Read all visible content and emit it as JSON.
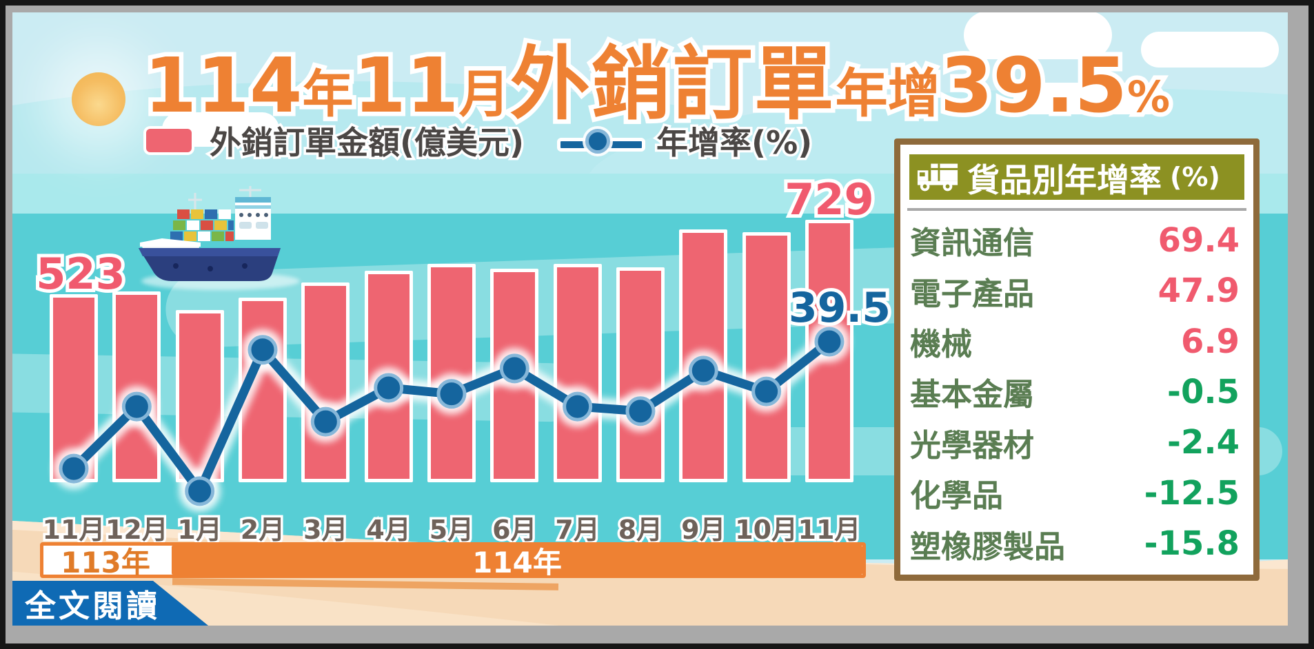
{
  "title": {
    "year_num": "114",
    "year_suffix": "年",
    "month_num": "11",
    "month_suffix": "月",
    "headline": "外銷訂單",
    "growth_prefix": "年增",
    "growth_value": "39.5",
    "percent_sign": "%"
  },
  "legend": {
    "bar_label": "外銷訂單金額(億美元)",
    "line_label": "年增率(%)"
  },
  "chart_data": {
    "type": "bar+line",
    "categories": [
      "11月",
      "12月",
      "1月",
      "2月",
      "3月",
      "4月",
      "5月",
      "6月",
      "7月",
      "8月",
      "9月",
      "10月",
      "11月"
    ],
    "year_bands": [
      {
        "label": "113年",
        "from_index": 0,
        "to_index": 1
      },
      {
        "label": "114年",
        "from_index": 2,
        "to_index": 12
      }
    ],
    "bar_series": {
      "name": "外銷訂單金額(億美元)",
      "unit": "億美元",
      "values": [
        523,
        530,
        479,
        513,
        555,
        588,
        607,
        594,
        607,
        597,
        703,
        695,
        729
      ],
      "note": "only first (523) and last (729) values are printed on the chart; intermediate values estimated from bar heights"
    },
    "line_series": {
      "name": "年增率(%)",
      "unit": "%",
      "values": [
        3.5,
        21.1,
        -2.9,
        37.2,
        16.8,
        26.4,
        24.7,
        31.9,
        21.1,
        19.8,
        31.3,
        25.4,
        39.5
      ],
      "note": "only final value (39.5) is printed on the chart; intermediate values estimated from point positions"
    },
    "annotations": [
      {
        "series": "bar",
        "index": 0,
        "text": "523"
      },
      {
        "series": "bar",
        "index": 12,
        "text": "729"
      },
      {
        "series": "line",
        "index": 12,
        "text": "39.5"
      }
    ],
    "legend_position": "top",
    "grid": false,
    "ylim_bar": [
      0,
      780
    ],
    "ylim_line": [
      -10,
      45
    ]
  },
  "panel": {
    "header": "貨品別年增率",
    "header_unit": "(%)",
    "icon": "truck-icon",
    "rows": [
      {
        "label": "資訊通信",
        "value": "69.4"
      },
      {
        "label": "電子產品",
        "value": "47.9"
      },
      {
        "label": "機械",
        "value": "6.9"
      },
      {
        "label": "基本金屬",
        "value": "-0.5"
      },
      {
        "label": "光學器材",
        "value": "-2.4"
      },
      {
        "label": "化學品",
        "value": "-12.5"
      },
      {
        "label": "塑橡膠製品",
        "value": "-15.8"
      }
    ]
  },
  "footer": {
    "read_more_label": "全文閱讀"
  },
  "colors": {
    "bar": "#ee6571",
    "line": "#15659e",
    "accent_orange": "#ee8133",
    "positive": "#f05a6e",
    "negative": "#12a25d",
    "header_olive": "#8c9122",
    "panel_border": "#8e6a3b",
    "button_blue": "#0f6ab4"
  }
}
